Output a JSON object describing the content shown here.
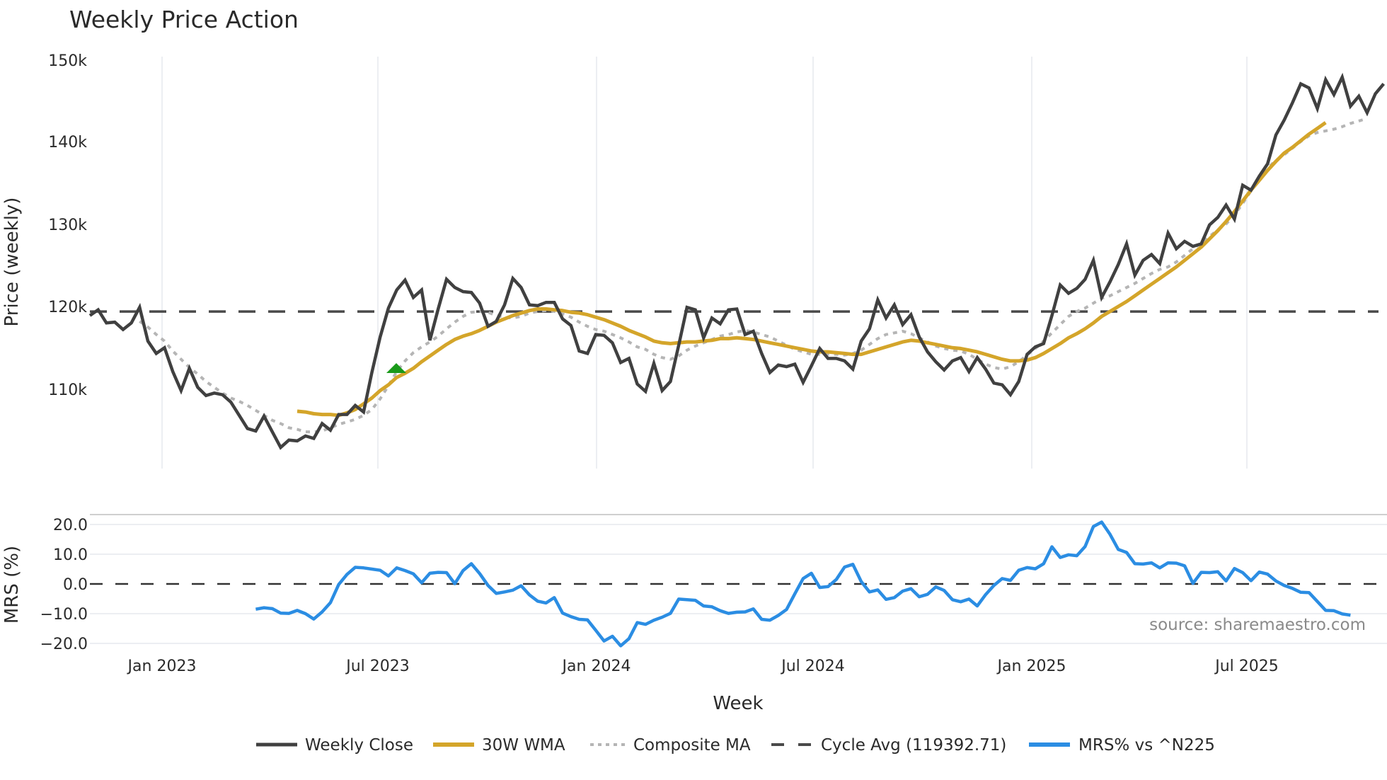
{
  "chart_data": {
    "type": "line",
    "title": "Weekly Price Action",
    "xlabel": "Week",
    "panels": [
      {
        "name": "price",
        "ylabel": "Price (weekly)",
        "ylim": [
          101000,
          151000
        ],
        "yticks": [
          110000,
          120000,
          130000,
          140000,
          150000
        ],
        "ytick_labels": [
          "110k",
          "120k",
          "130k",
          "140k",
          "150k"
        ],
        "series": [
          {
            "name": "Weekly Close",
            "color": "#404040",
            "style": "solid"
          },
          {
            "name": "30W WMA",
            "color": "#d4a52a",
            "style": "solid"
          },
          {
            "name": "Composite MA",
            "color": "#b5b5b5",
            "style": "dotted"
          },
          {
            "name": "Cycle Avg (119392.71)",
            "color": "#4a4a4a",
            "style": "dashed",
            "value": 119392.71
          }
        ],
        "annotations": [
          {
            "type": "marker",
            "shape": "triangle-up",
            "color": "#1a9a1a",
            "x_week": 30,
            "y": 112700
          }
        ]
      },
      {
        "name": "mrs",
        "ylabel": "MRS (%)",
        "ylim": [
          -23,
          25
        ],
        "yticks": [
          -20,
          -10,
          0,
          10,
          20
        ],
        "ytick_labels": [
          "−20.0",
          "−10.0",
          "0.0",
          "10.0",
          "20.0"
        ],
        "series": [
          {
            "name": "MRS% vs ^N225",
            "color": "#2b8de3",
            "style": "solid"
          },
          {
            "name": "zero",
            "color": "#333333",
            "style": "dashed",
            "value": 0
          }
        ],
        "annotation_text": "source: sharemaestro.com"
      }
    ],
    "x_ticks": [
      "Jan 2023",
      "Jul 2023",
      "Jan 2024",
      "Jul 2024",
      "Jan 2025",
      "Jul 2025"
    ],
    "x_tick_weeks": [
      8.7,
      34.8,
      61.2,
      87.3,
      113.7,
      139.7
    ],
    "weekly_close": [
      118900,
      119600,
      118000,
      118100,
      117200,
      118000,
      119900,
      115800,
      114300,
      115000,
      112100,
      109800,
      112500,
      110200,
      109200,
      109500,
      109300,
      108400,
      106800,
      105200,
      104900,
      106700,
      104800,
      102900,
      103800,
      103700,
      104300,
      104000,
      105800,
      105000,
      106900,
      106900,
      108000,
      107200,
      112000,
      116300,
      119800,
      122000,
      123200,
      121100,
      122000,
      115900,
      119700,
      123300,
      122300,
      121800,
      121700,
      120400,
      117600,
      118200,
      120200,
      123400,
      122300,
      120200,
      120100,
      120500,
      120500,
      118500,
      117700,
      114600,
      114300,
      116600,
      116500,
      115600,
      113200,
      113700,
      110600,
      109700,
      113100,
      109800,
      110900,
      115300,
      119900,
      119600,
      116200,
      118600,
      117900,
      119600,
      119700,
      116600,
      117000,
      114300,
      112000,
      112900,
      112700,
      113000,
      110800,
      112800,
      114900,
      113700,
      113700,
      113400,
      112400,
      115800,
      117300,
      120800,
      118600,
      120200,
      117800,
      119000,
      116300,
      114500,
      113300,
      112300,
      113400,
      113800,
      112100,
      113800,
      112400,
      110700,
      110500,
      109300,
      110900,
      114200,
      115100,
      115500,
      118900,
      122600,
      121600,
      122200,
      123300,
      125600,
      121100,
      123000,
      125100,
      127600,
      123800,
      125600,
      126300,
      125200,
      128900,
      127000,
      127900,
      127300,
      127600,
      129900,
      130800,
      132300,
      130600,
      134700,
      134100,
      135800,
      137300,
      140800,
      142600,
      144700,
      147000,
      146500,
      144000,
      147500,
      145700,
      147800,
      144300,
      145500,
      143500,
      145800,
      147000
    ],
    "wma30": [
      null,
      null,
      null,
      null,
      null,
      null,
      null,
      null,
      null,
      null,
      null,
      null,
      null,
      null,
      null,
      null,
      null,
      null,
      null,
      null,
      null,
      null,
      null,
      null,
      null,
      107300,
      107200,
      107000,
      106900,
      106900,
      106800,
      107100,
      107500,
      108200,
      108900,
      109800,
      110500,
      111400,
      111900,
      112500,
      113300,
      114000,
      114700,
      115400,
      116000,
      116400,
      116700,
      117100,
      117600,
      118100,
      118500,
      118900,
      119200,
      119500,
      119700,
      119700,
      119600,
      119500,
      119300,
      119200,
      119000,
      118700,
      118400,
      118000,
      117600,
      117100,
      116700,
      116300,
      115800,
      115600,
      115500,
      115600,
      115700,
      115700,
      115800,
      115900,
      116100,
      116100,
      116200,
      116100,
      116000,
      115800,
      115600,
      115400,
      115200,
      115000,
      114800,
      114600,
      114500,
      114500,
      114400,
      114300,
      114200,
      114200,
      114500,
      114800,
      115100,
      115400,
      115700,
      115900,
      115800,
      115600,
      115400,
      115200,
      115000,
      114900,
      114700,
      114500,
      114200,
      113900,
      113600,
      113400,
      113400,
      113500,
      113800,
      114300,
      114900,
      115500,
      116200,
      116700,
      117300,
      118000,
      118800,
      119400,
      120000,
      120600,
      121300,
      122000,
      122700,
      123400,
      124100,
      124800,
      125600,
      126400,
      127200,
      128200,
      129200,
      130300,
      131500,
      132800,
      134100,
      135300,
      136500,
      137600,
      138600,
      139300,
      140100,
      140900,
      141600,
      142300
    ],
    "composite_ma": [
      null,
      null,
      null,
      null,
      null,
      null,
      118200,
      117500,
      116600,
      115800,
      114600,
      113600,
      112600,
      111800,
      110900,
      110200,
      109500,
      108900,
      108500,
      108000,
      107400,
      106800,
      106200,
      105800,
      105300,
      105100,
      104800,
      104800,
      104900,
      105300,
      105700,
      106000,
      106300,
      106800,
      107500,
      108800,
      110400,
      112100,
      113400,
      114400,
      115100,
      115700,
      116400,
      117300,
      118100,
      118800,
      119300,
      119400,
      119300,
      118900,
      118700,
      118600,
      118800,
      119200,
      119400,
      119500,
      119400,
      119100,
      118700,
      118100,
      117600,
      117200,
      117000,
      116600,
      116200,
      115700,
      115100,
      114800,
      114200,
      113800,
      113600,
      114000,
      114700,
      115200,
      115600,
      116000,
      116400,
      116600,
      116900,
      117100,
      116900,
      116600,
      116300,
      115800,
      115300,
      114800,
      114500,
      114200,
      114200,
      114200,
      114200,
      114100,
      114300,
      114700,
      115400,
      116100,
      116600,
      116800,
      117000,
      116700,
      116200,
      115700,
      115200,
      114900,
      114700,
      114600,
      114200,
      113600,
      113000,
      112600,
      112400,
      112700,
      113300,
      114100,
      114900,
      115800,
      116800,
      117800,
      118800,
      119400,
      119800,
      120400,
      121000,
      121300,
      121800,
      122300,
      122800,
      123400,
      124000,
      124500,
      124800,
      125400,
      126200,
      127000,
      127700,
      128500,
      129300,
      130000,
      131100,
      132500,
      134000,
      135500,
      136800,
      137700,
      138400,
      139200,
      140000,
      140700,
      141100,
      141300,
      141500,
      141800,
      142200,
      142500,
      142800
    ],
    "mrs": [
      null,
      null,
      null,
      null,
      null,
      null,
      null,
      null,
      null,
      null,
      null,
      null,
      null,
      null,
      null,
      null,
      null,
      null,
      null,
      null,
      -8.5,
      -8.0,
      -8.3,
      -9.8,
      -9.9,
      -8.9,
      -10.0,
      -11.8,
      -9.4,
      -6.3,
      -0.2,
      3.2,
      5.6,
      5.4,
      5.0,
      4.6,
      2.7,
      5.4,
      4.5,
      3.4,
      0.4,
      3.6,
      3.9,
      3.8,
      0.1,
      4.5,
      6.8,
      3.5,
      -0.5,
      -3.2,
      -2.7,
      -2.1,
      -0.6,
      -3.7,
      -5.8,
      -6.4,
      -4.6,
      -9.8,
      -11.0,
      -11.9,
      -12.1,
      -15.6,
      -19.2,
      -17.6,
      -20.8,
      -18.4,
      -13.0,
      -13.6,
      -12.2,
      -11.2,
      -9.9,
      -5.1,
      -5.3,
      -5.5,
      -7.4,
      -7.7,
      -9.0,
      -9.9,
      -9.5,
      -9.4,
      -8.4,
      -11.9,
      -12.2,
      -10.6,
      -8.6,
      -3.3,
      1.8,
      3.6,
      -1.2,
      -0.9,
      1.5,
      5.7,
      6.6,
      0.8,
      -2.7,
      -2.0,
      -5.2,
      -4.6,
      -2.4,
      -1.6,
      -4.3,
      -3.5,
      -1.0,
      -2.2,
      -5.3,
      -6.0,
      -5.1,
      -7.4,
      -3.6,
      -0.5,
      1.8,
      1.2,
      4.6,
      5.5,
      5.1,
      6.8,
      12.5,
      8.9,
      9.8,
      9.5,
      12.6,
      19.3,
      20.8,
      16.7,
      11.6,
      10.6,
      6.8,
      6.7,
      7.1,
      5.4,
      7.1,
      7.0,
      6.1,
      0.2,
      3.9,
      3.8,
      4.1,
      1.0,
      5.2,
      3.8,
      1.1,
      4.0,
      3.3,
      1.0,
      -0.5,
      -1.5,
      -2.8,
      -2.9,
      -5.9,
      -8.9,
      -9.0,
      -10.1,
      -10.5
    ]
  },
  "header": {
    "title": "Weekly Price Action"
  },
  "axes": {
    "price_ylabel": "Price (weekly)",
    "mrs_ylabel": "MRS (%)",
    "xlabel": "Week",
    "price_ticks": [
      "150k",
      "140k",
      "130k",
      "120k",
      "110k"
    ],
    "mrs_ticks": [
      "20.0",
      "10.0",
      "0.0",
      "−10.0",
      "−20.0"
    ],
    "x_ticks": [
      "Jan 2023",
      "Jul 2023",
      "Jan 2024",
      "Jul 2024",
      "Jan 2025",
      "Jul 2025"
    ]
  },
  "source_label": "source: sharemaestro.com",
  "legend": [
    {
      "label": "Weekly Close",
      "color": "#404040",
      "style": "solid"
    },
    {
      "label": "30W WMA",
      "color": "#d4a52a",
      "style": "solid"
    },
    {
      "label": "Composite MA",
      "color": "#b5b5b5",
      "style": "dotted"
    },
    {
      "label": "Cycle Avg (119392.71)",
      "color": "#4a4a4a",
      "style": "dashed"
    },
    {
      "label": "MRS% vs ^N225",
      "color": "#2b8de3",
      "style": "solid"
    }
  ]
}
